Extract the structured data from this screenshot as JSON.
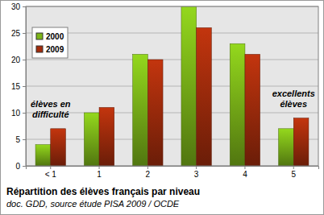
{
  "chart_data": {
    "type": "bar",
    "title": "Répartition des élèves français par niveau",
    "subtitle": "doc. GDD, source étude PISA 2009 / OCDE",
    "categories": [
      "< 1",
      "1",
      "2",
      "3",
      "4",
      "5"
    ],
    "series": [
      {
        "name": "2000",
        "color": "#7cb518",
        "values": [
          4,
          10,
          21,
          30,
          23,
          7
        ]
      },
      {
        "name": "2009",
        "color": "#a32c0c",
        "values": [
          7,
          11,
          20,
          26,
          21,
          9
        ]
      }
    ],
    "annotations": [
      "élèves en difficulté",
      "excellents élèves"
    ],
    "ylim": [
      0,
      30
    ],
    "yticks": [
      0,
      5,
      10,
      15,
      20,
      25,
      30
    ],
    "grid": true,
    "legend": "upper left"
  }
}
